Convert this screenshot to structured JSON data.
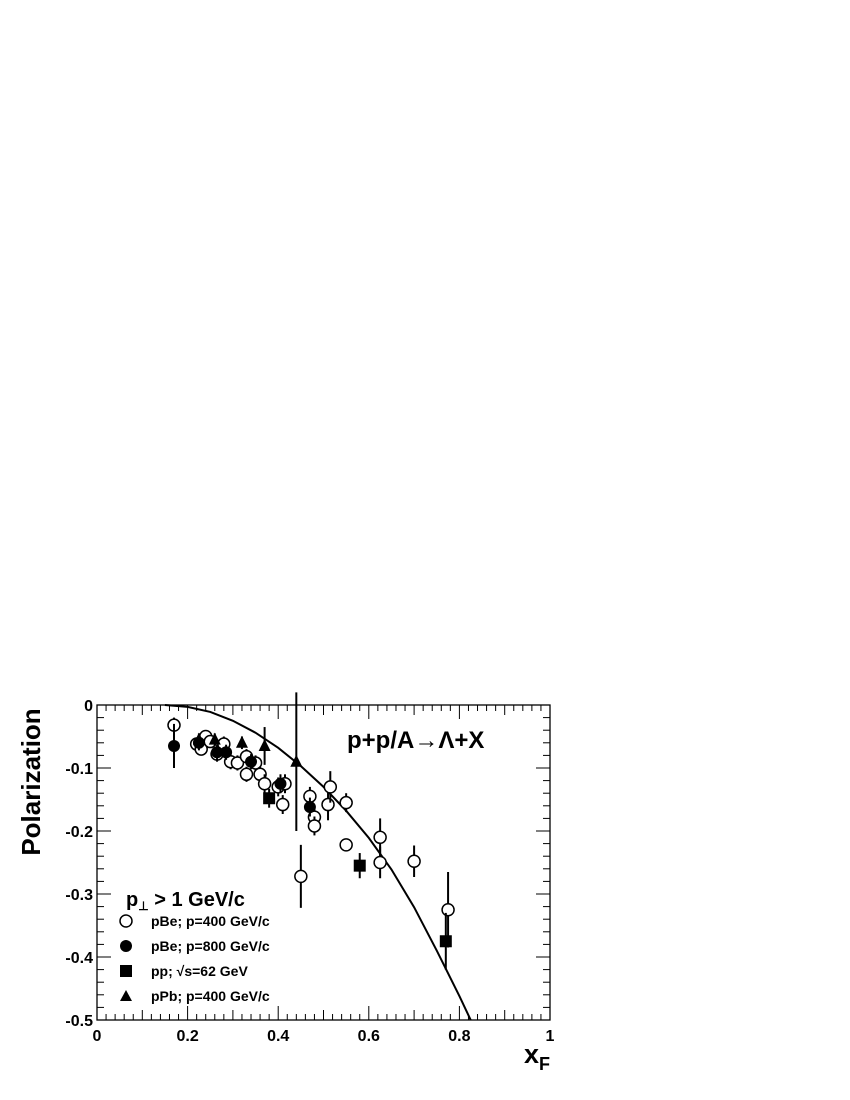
{
  "chart_data": {
    "type": "scatter",
    "title": "p+p/A→Λ+X",
    "xlabel": "x",
    "xlabel_sub": "F",
    "ylabel": "Polarization",
    "xlim": [
      0,
      1
    ],
    "ylim": [
      -0.5,
      0
    ],
    "x_ticks": [
      "0",
      "0.2",
      "0.4",
      "0.6",
      "0.8",
      "1"
    ],
    "y_ticks": [
      "0",
      "-0.1",
      "-0.2",
      "-0.3",
      "-0.4",
      "-0.5"
    ],
    "legend_header": {
      "main": "p",
      "sub": "⊥",
      "rest": " > 1 GeV/c"
    },
    "legend_placement": "lower-left",
    "series": [
      {
        "name": "pBe; p=400 GeV/c",
        "marker": "open-circle",
        "points": [
          {
            "x": 0.17,
            "y": -0.032,
            "err": 0.012
          },
          {
            "x": 0.22,
            "y": -0.062,
            "err": 0.008
          },
          {
            "x": 0.23,
            "y": -0.07,
            "err": 0.008
          },
          {
            "x": 0.24,
            "y": -0.05,
            "err": 0.008
          },
          {
            "x": 0.25,
            "y": -0.058,
            "err": 0.01
          },
          {
            "x": 0.265,
            "y": -0.078,
            "err": 0.012
          },
          {
            "x": 0.28,
            "y": -0.062,
            "err": 0.012
          },
          {
            "x": 0.295,
            "y": -0.09,
            "err": 0.012
          },
          {
            "x": 0.31,
            "y": -0.092,
            "err": 0.012
          },
          {
            "x": 0.33,
            "y": -0.11,
            "err": 0.012
          },
          {
            "x": 0.33,
            "y": -0.082,
            "err": 0.012
          },
          {
            "x": 0.35,
            "y": -0.092,
            "err": 0.012
          },
          {
            "x": 0.36,
            "y": -0.11,
            "err": 0.012
          },
          {
            "x": 0.37,
            "y": -0.125,
            "err": 0.015
          },
          {
            "x": 0.4,
            "y": -0.13,
            "err": 0.015
          },
          {
            "x": 0.41,
            "y": -0.158,
            "err": 0.015
          },
          {
            "x": 0.415,
            "y": -0.125,
            "err": 0.015
          },
          {
            "x": 0.45,
            "y": -0.272,
            "err": 0.05
          },
          {
            "x": 0.47,
            "y": -0.145,
            "err": 0.015
          },
          {
            "x": 0.48,
            "y": -0.178,
            "err": 0.015
          },
          {
            "x": 0.48,
            "y": -0.192,
            "err": 0.015
          },
          {
            "x": 0.51,
            "y": -0.158,
            "err": 0.025
          },
          {
            "x": 0.515,
            "y": -0.13,
            "err": 0.025
          },
          {
            "x": 0.55,
            "y": -0.222,
            "err": 0.01
          },
          {
            "x": 0.55,
            "y": -0.155,
            "err": 0.015
          },
          {
            "x": 0.625,
            "y": -0.21,
            "err": 0.03
          },
          {
            "x": 0.625,
            "y": -0.25,
            "err": 0.025
          },
          {
            "x": 0.7,
            "y": -0.248,
            "err": 0.025
          },
          {
            "x": 0.775,
            "y": -0.325,
            "err": 0.06
          }
        ]
      },
      {
        "name": "pBe; p=800 GeV/c",
        "marker": "filled-circle",
        "points": [
          {
            "x": 0.17,
            "y": -0.065,
            "err": 0.035
          },
          {
            "x": 0.225,
            "y": -0.06,
            "err": 0.012
          },
          {
            "x": 0.265,
            "y": -0.075,
            "err": 0.012
          },
          {
            "x": 0.285,
            "y": -0.075,
            "err": 0.012
          },
          {
            "x": 0.34,
            "y": -0.09,
            "err": 0.012
          },
          {
            "x": 0.405,
            "y": -0.125,
            "err": 0.015
          },
          {
            "x": 0.47,
            "y": -0.162,
            "err": 0.015
          }
        ]
      },
      {
        "name": "pp;   √s=62 GeV",
        "marker": "filled-square",
        "points": [
          {
            "x": 0.38,
            "y": -0.148,
            "err": 0.015
          },
          {
            "x": 0.58,
            "y": -0.255,
            "err": 0.02
          },
          {
            "x": 0.77,
            "y": -0.375,
            "err": 0.045
          }
        ]
      },
      {
        "name": "pPb; p=400 GeV/c",
        "marker": "filled-triangle",
        "points": [
          {
            "x": 0.225,
            "y": -0.055,
            "err": 0.01
          },
          {
            "x": 0.26,
            "y": -0.055,
            "err": 0.01
          },
          {
            "x": 0.32,
            "y": -0.06,
            "err": 0.01
          },
          {
            "x": 0.37,
            "y": -0.065,
            "err": 0.03
          },
          {
            "x": 0.44,
            "y": -0.09,
            "err": 0.11
          }
        ]
      }
    ],
    "curve": {
      "name": "",
      "x": [
        0.15,
        0.2,
        0.25,
        0.3,
        0.35,
        0.4,
        0.45,
        0.5,
        0.55,
        0.6,
        0.65,
        0.7,
        0.75,
        0.8,
        0.825
      ],
      "y": [
        0.0,
        -0.003,
        -0.011,
        -0.025,
        -0.044,
        -0.068,
        -0.097,
        -0.13,
        -0.168,
        -0.211,
        -0.261,
        -0.321,
        -0.39,
        -0.462,
        -0.5
      ]
    },
    "grid": false
  }
}
